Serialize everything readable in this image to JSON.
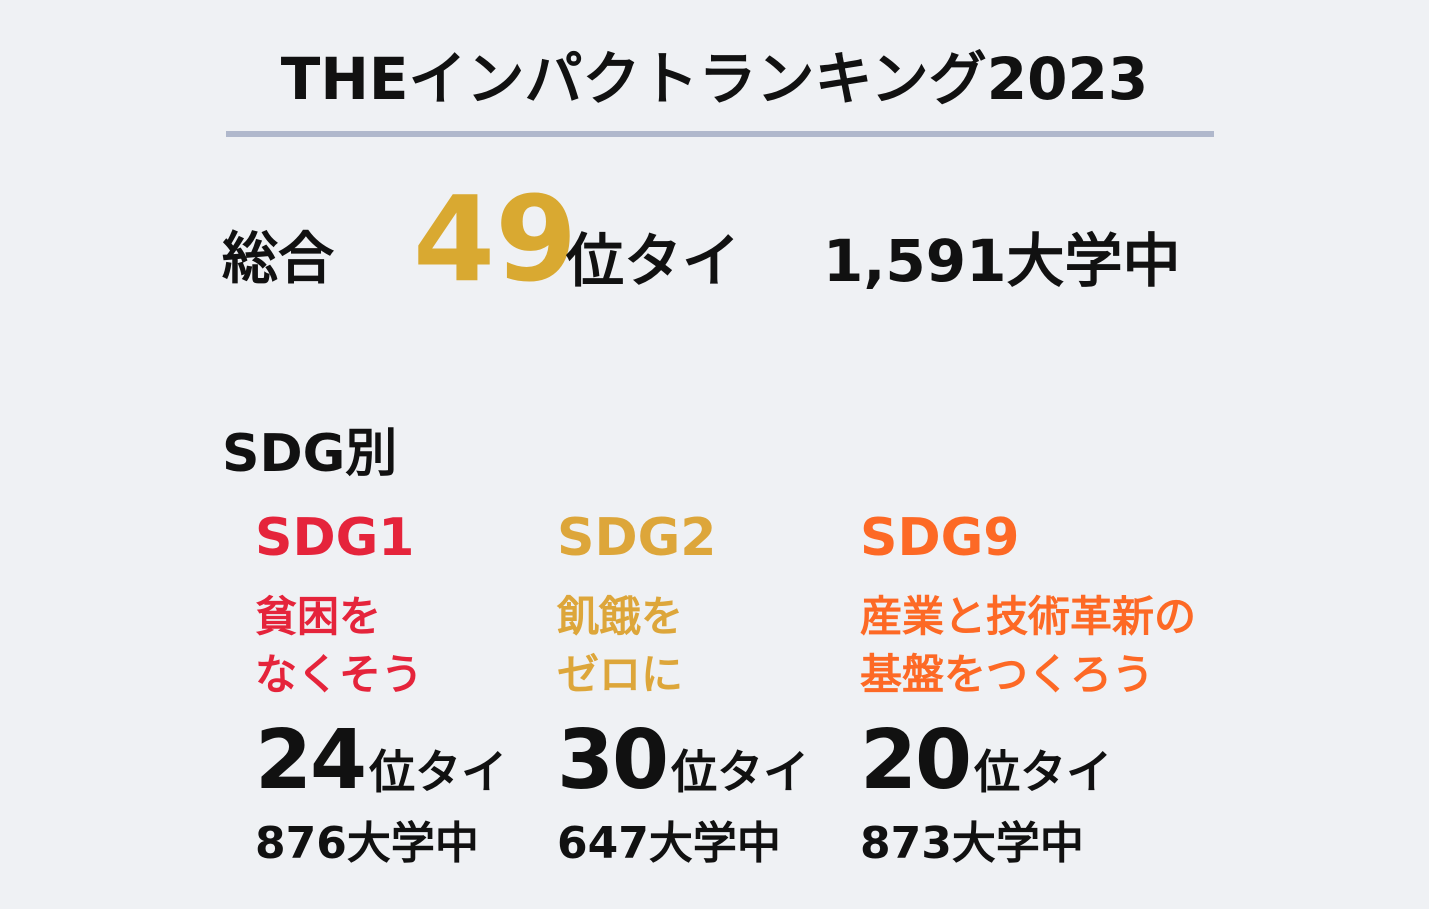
{
  "header": {
    "title": "THEインパクトランキング2023"
  },
  "overall": {
    "label": "総合",
    "rank": "49",
    "rank_suffix": "位タイ",
    "total": "1,591大学中"
  },
  "by_sdg": {
    "heading": "SDG別",
    "items": [
      {
        "code": "SDG1",
        "color": "#e5243b",
        "line1": "貧困を",
        "line2": "なくそう",
        "rank": "24",
        "rank_suffix": "位タイ",
        "total": "876大学中"
      },
      {
        "code": "SDG2",
        "color": "#dda63a",
        "line1": "飢餓を",
        "line2": "ゼロに",
        "rank": "30",
        "rank_suffix": "位タイ",
        "total": "647大学中"
      },
      {
        "code": "SDG9",
        "color": "#fd6925",
        "line1": "産業と技術革新の",
        "line2": "基盤をつくろう",
        "rank": "20",
        "rank_suffix": "位タイ",
        "total": "873大学中"
      }
    ]
  }
}
